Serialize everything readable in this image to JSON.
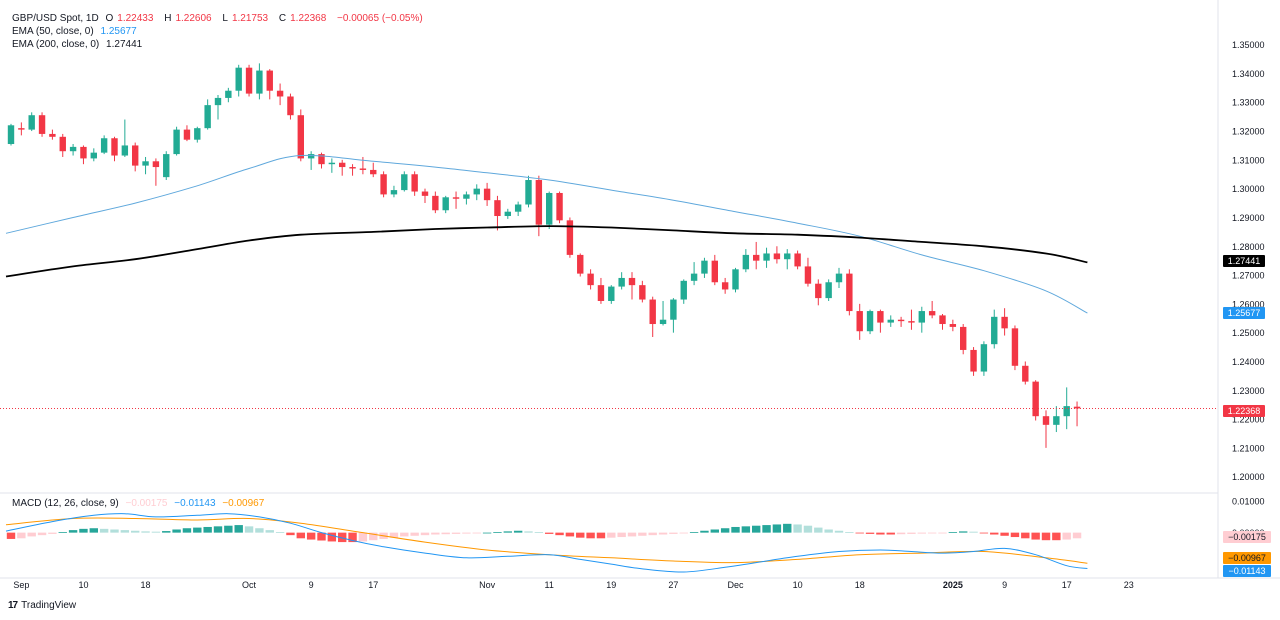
{
  "header": {
    "symbol": "GBP/USD Spot, 1D",
    "o_label": "O",
    "o": "1.22433",
    "h_label": "H",
    "h": "1.22606",
    "l_label": "L",
    "l": "1.21753",
    "c_label": "C",
    "c": "1.22368",
    "change": "−0.00065 (−0.05%)",
    "ema50_name": "EMA (50, close, 0)",
    "ema50_value": "1.25677",
    "ema200_name": "EMA (200, close, 0)",
    "ema200_value": "1.27441"
  },
  "macd_legend": {
    "name": "MACD (12, 26, close, 9)",
    "hist_value": "−0.00175",
    "macd_value": "−0.01143",
    "signal_value": "−0.00967"
  },
  "price_tags": {
    "ema200": "1.27441",
    "ema50": "1.25677",
    "last": "1.22368"
  },
  "macd_tags": {
    "hist": "−0.00175",
    "signal": "−0.00967",
    "macd": "−0.01143"
  },
  "branding": "TradingView",
  "colors": {
    "up": "#22ab94",
    "down": "#f23645",
    "ema50": "#5fa8dc",
    "ema200": "#000000",
    "macd": "#2196f3",
    "signal": "#ff9800",
    "hist_up_strong": "#26a69a",
    "hist_up_weak": "#b2dfdb",
    "hist_down_strong": "#ff5252",
    "hist_down_weak": "#ffcdd2"
  },
  "chart_data": {
    "type": "candlestick",
    "title": "GBP/USD Spot, 1D",
    "ylim": [
      1.1985,
      1.353
    ],
    "y_ticks": [
      "1.35000",
      "1.34000",
      "1.33000",
      "1.32000",
      "1.31000",
      "1.30000",
      "1.29000",
      "1.28000",
      "1.27000",
      "1.26000",
      "1.25000",
      "1.24000",
      "1.23000",
      "1.22000",
      "1.21000",
      "1.20000"
    ],
    "x_ticks": [
      {
        "label": "Sep",
        "i": 1
      },
      {
        "label": "10",
        "i": 7
      },
      {
        "label": "18",
        "i": 13
      },
      {
        "label": "Oct",
        "i": 23
      },
      {
        "label": "9",
        "i": 29
      },
      {
        "label": "17",
        "i": 35
      },
      {
        "label": "Nov",
        "i": 46
      },
      {
        "label": "11",
        "i": 52
      },
      {
        "label": "19",
        "i": 58
      },
      {
        "label": "27",
        "i": 64
      },
      {
        "label": "Dec",
        "i": 70
      },
      {
        "label": "10",
        "i": 76
      },
      {
        "label": "18",
        "i": 82
      },
      {
        "label": "2025",
        "i": 91,
        "bold": true
      },
      {
        "label": "9",
        "i": 96
      },
      {
        "label": "17",
        "i": 102
      },
      {
        "label": "23",
        "i": 108
      }
    ],
    "candles": [
      [
        1.3155,
        1.3225,
        1.315,
        1.322
      ],
      [
        1.321,
        1.323,
        1.3185,
        1.3205
      ],
      [
        1.3205,
        1.3265,
        1.32,
        1.3255
      ],
      [
        1.3255,
        1.3265,
        1.318,
        1.319
      ],
      [
        1.319,
        1.3205,
        1.317,
        1.318
      ],
      [
        1.318,
        1.319,
        1.311,
        1.313
      ],
      [
        1.313,
        1.3155,
        1.3115,
        1.3145
      ],
      [
        1.3145,
        1.315,
        1.3085,
        1.3105
      ],
      [
        1.3105,
        1.314,
        1.3095,
        1.3125
      ],
      [
        1.3125,
        1.3185,
        1.312,
        1.3175
      ],
      [
        1.3175,
        1.318,
        1.3095,
        1.3115
      ],
      [
        1.3115,
        1.324,
        1.311,
        1.315
      ],
      [
        1.315,
        1.316,
        1.306,
        1.308
      ],
      [
        1.308,
        1.311,
        1.305,
        1.3095
      ],
      [
        1.3095,
        1.3105,
        1.301,
        1.3075
      ],
      [
        1.304,
        1.313,
        1.303,
        1.312
      ],
      [
        1.312,
        1.3215,
        1.3115,
        1.3205
      ],
      [
        1.3205,
        1.322,
        1.3165,
        1.317
      ],
      [
        1.317,
        1.3215,
        1.316,
        1.321
      ],
      [
        1.321,
        1.331,
        1.3205,
        1.329
      ],
      [
        1.329,
        1.3325,
        1.324,
        1.3315
      ],
      [
        1.3315,
        1.335,
        1.33,
        1.334
      ],
      [
        1.334,
        1.343,
        1.332,
        1.342
      ],
      [
        1.342,
        1.343,
        1.332,
        1.333
      ],
      [
        1.333,
        1.3435,
        1.331,
        1.341
      ],
      [
        1.341,
        1.3415,
        1.331,
        1.334
      ],
      [
        1.334,
        1.3365,
        1.329,
        1.332
      ],
      [
        1.332,
        1.333,
        1.324,
        1.3255
      ],
      [
        1.3255,
        1.3275,
        1.3095,
        1.3105
      ],
      [
        1.3105,
        1.313,
        1.3065,
        1.312
      ],
      [
        1.312,
        1.3125,
        1.307,
        1.3085
      ],
      [
        1.3085,
        1.3105,
        1.3055,
        1.309
      ],
      [
        1.309,
        1.31,
        1.3045,
        1.3075
      ],
      [
        1.3075,
        1.3085,
        1.3045,
        1.307
      ],
      [
        1.307,
        1.311,
        1.305,
        1.3065
      ],
      [
        1.3065,
        1.309,
        1.304,
        1.305
      ],
      [
        1.305,
        1.306,
        1.297,
        1.298
      ],
      [
        1.298,
        1.301,
        1.297,
        1.2995
      ],
      [
        1.2995,
        1.306,
        1.299,
        1.305
      ],
      [
        1.305,
        1.306,
        1.2975,
        1.299
      ],
      [
        1.299,
        1.3,
        1.295,
        1.2975
      ],
      [
        1.2975,
        1.299,
        1.2915,
        1.2925
      ],
      [
        1.2925,
        1.2975,
        1.2915,
        1.297
      ],
      [
        1.297,
        1.299,
        1.293,
        1.2965
      ],
      [
        1.2965,
        1.299,
        1.2945,
        1.298
      ],
      [
        1.298,
        1.3015,
        1.296,
        1.3
      ],
      [
        1.3,
        1.302,
        1.294,
        1.296
      ],
      [
        1.296,
        1.2975,
        1.2855,
        1.2905
      ],
      [
        1.2905,
        1.293,
        1.2895,
        1.292
      ],
      [
        1.292,
        1.2955,
        1.2905,
        1.2945
      ],
      [
        1.2945,
        1.3045,
        1.2935,
        1.303
      ],
      [
        1.303,
        1.3045,
        1.2835,
        1.2875
      ],
      [
        1.2875,
        1.299,
        1.286,
        1.2985
      ],
      [
        1.2985,
        1.299,
        1.288,
        1.289
      ],
      [
        1.289,
        1.29,
        1.276,
        1.277
      ],
      [
        1.277,
        1.2775,
        1.2695,
        1.2705
      ],
      [
        1.2705,
        1.272,
        1.265,
        1.2665
      ],
      [
        1.2665,
        1.269,
        1.26,
        1.261
      ],
      [
        1.261,
        1.2665,
        1.26,
        1.266
      ],
      [
        1.266,
        1.271,
        1.265,
        1.269
      ],
      [
        1.269,
        1.271,
        1.2615,
        1.2665
      ],
      [
        1.2665,
        1.268,
        1.2605,
        1.2615
      ],
      [
        1.2615,
        1.2625,
        1.2485,
        1.253
      ],
      [
        1.253,
        1.261,
        1.2525,
        1.2545
      ],
      [
        1.2545,
        1.262,
        1.25,
        1.2615
      ],
      [
        1.2615,
        1.2685,
        1.26,
        1.268
      ],
      [
        1.268,
        1.2745,
        1.2665,
        1.2705
      ],
      [
        1.2705,
        1.276,
        1.269,
        1.275
      ],
      [
        1.275,
        1.277,
        1.2665,
        1.2675
      ],
      [
        1.2675,
        1.269,
        1.2635,
        1.265
      ],
      [
        1.265,
        1.2725,
        1.264,
        1.272
      ],
      [
        1.272,
        1.279,
        1.271,
        1.277
      ],
      [
        1.277,
        1.2815,
        1.272,
        1.275
      ],
      [
        1.275,
        1.2795,
        1.2725,
        1.2775
      ],
      [
        1.2775,
        1.28,
        1.274,
        1.2755
      ],
      [
        1.2755,
        1.279,
        1.272,
        1.2775
      ],
      [
        1.2775,
        1.2785,
        1.272,
        1.273
      ],
      [
        1.273,
        1.276,
        1.266,
        1.267
      ],
      [
        1.267,
        1.2685,
        1.2595,
        1.262
      ],
      [
        1.262,
        1.2685,
        1.261,
        1.2675
      ],
      [
        1.2675,
        1.2725,
        1.2655,
        1.2705
      ],
      [
        1.2705,
        1.272,
        1.256,
        1.2575
      ],
      [
        1.2575,
        1.26,
        1.2475,
        1.2505
      ],
      [
        1.2505,
        1.258,
        1.2495,
        1.2575
      ],
      [
        1.2575,
        1.258,
        1.25,
        1.2535
      ],
      [
        1.2535,
        1.256,
        1.252,
        1.2545
      ],
      [
        1.2545,
        1.2555,
        1.252,
        1.254
      ],
      [
        1.254,
        1.258,
        1.251,
        1.2535
      ],
      [
        1.2535,
        1.259,
        1.25,
        1.2575
      ],
      [
        1.2575,
        1.261,
        1.255,
        1.256
      ],
      [
        1.256,
        1.2565,
        1.251,
        1.253
      ],
      [
        1.253,
        1.2545,
        1.2505,
        1.252
      ],
      [
        1.252,
        1.253,
        1.2425,
        1.244
      ],
      [
        1.244,
        1.245,
        1.235,
        1.2365
      ],
      [
        1.2365,
        1.247,
        1.235,
        1.246
      ],
      [
        1.246,
        1.258,
        1.2445,
        1.2555
      ],
      [
        1.2555,
        1.2585,
        1.249,
        1.2515
      ],
      [
        1.2515,
        1.2525,
        1.237,
        1.2385
      ],
      [
        1.2385,
        1.24,
        1.232,
        1.233
      ],
      [
        1.233,
        1.2335,
        1.2195,
        1.221
      ],
      [
        1.221,
        1.223,
        1.21,
        1.218
      ],
      [
        1.218,
        1.2245,
        1.2155,
        1.221
      ],
      [
        1.221,
        1.231,
        1.2165,
        1.2245
      ],
      [
        1.2243,
        1.2261,
        1.2175,
        1.2237
      ]
    ],
    "ema50": [
      [
        0,
        1.2845
      ],
      [
        6,
        1.29
      ],
      [
        12,
        1.295
      ],
      [
        18,
        1.301
      ],
      [
        23,
        1.307
      ],
      [
        28,
        1.3115
      ],
      [
        35,
        1.3095
      ],
      [
        41,
        1.3075
      ],
      [
        46,
        1.3055
      ],
      [
        52,
        1.303
      ],
      [
        58,
        1.2995
      ],
      [
        64,
        1.296
      ],
      [
        70,
        1.292
      ],
      [
        76,
        1.288
      ],
      [
        82,
        1.2835
      ],
      [
        88,
        1.277
      ],
      [
        94,
        1.2715
      ],
      [
        100,
        1.2645
      ],
      [
        104,
        1.2568
      ]
    ],
    "ema200": [
      [
        0,
        1.2695
      ],
      [
        6,
        1.273
      ],
      [
        12,
        1.2755
      ],
      [
        18,
        1.279
      ],
      [
        23,
        1.282
      ],
      [
        28,
        1.284
      ],
      [
        35,
        1.285
      ],
      [
        41,
        1.286
      ],
      [
        46,
        1.2865
      ],
      [
        52,
        1.287
      ],
      [
        58,
        1.2865
      ],
      [
        64,
        1.2855
      ],
      [
        70,
        1.2845
      ],
      [
        76,
        1.284
      ],
      [
        82,
        1.283
      ],
      [
        88,
        1.2815
      ],
      [
        94,
        1.28
      ],
      [
        100,
        1.2775
      ],
      [
        104,
        1.2744
      ]
    ],
    "last_price": 1.22368,
    "macd": {
      "ylim": [
        -0.0125,
        0.011
      ],
      "y_ticks": [
        "0.01000",
        "0.00000"
      ],
      "macd_line": [
        [
          0,
          0.0005
        ],
        [
          4,
          0.0035
        ],
        [
          8,
          0.0055
        ],
        [
          11,
          0.006
        ],
        [
          14,
          0.005
        ],
        [
          18,
          0.0055
        ],
        [
          21,
          0.006
        ],
        [
          24,
          0.005
        ],
        [
          27,
          0.003
        ],
        [
          30,
          0.0
        ],
        [
          33,
          -0.0025
        ],
        [
          36,
          -0.0045
        ],
        [
          40,
          -0.0065
        ],
        [
          44,
          -0.008
        ],
        [
          48,
          -0.0075
        ],
        [
          52,
          -0.007
        ],
        [
          55,
          -0.0085
        ],
        [
          58,
          -0.01
        ],
        [
          61,
          -0.0115
        ],
        [
          65,
          -0.0125
        ],
        [
          69,
          -0.011
        ],
        [
          72,
          -0.0095
        ],
        [
          76,
          -0.0075
        ],
        [
          80,
          -0.006
        ],
        [
          84,
          -0.0055
        ],
        [
          87,
          -0.006
        ],
        [
          90,
          -0.0065
        ],
        [
          93,
          -0.006
        ],
        [
          96,
          -0.005
        ],
        [
          99,
          -0.007
        ],
        [
          102,
          -0.0105
        ],
        [
          104,
          -0.0114
        ]
      ],
      "signal_line": [
        [
          0,
          0.0025
        ],
        [
          6,
          0.0045
        ],
        [
          12,
          0.0045
        ],
        [
          18,
          0.004
        ],
        [
          23,
          0.0045
        ],
        [
          28,
          0.003
        ],
        [
          34,
          0.0
        ],
        [
          40,
          -0.003
        ],
        [
          46,
          -0.0055
        ],
        [
          52,
          -0.007
        ],
        [
          58,
          -0.008
        ],
        [
          64,
          -0.009
        ],
        [
          70,
          -0.0095
        ],
        [
          76,
          -0.0085
        ],
        [
          82,
          -0.007
        ],
        [
          88,
          -0.0065
        ],
        [
          94,
          -0.006
        ],
        [
          100,
          -0.008
        ],
        [
          104,
          -0.0097
        ]
      ],
      "histogram": [
        -0.002,
        -0.0018,
        -0.0012,
        -0.0008,
        -0.0004,
        0.0002,
        0.0008,
        0.0012,
        0.0014,
        0.0012,
        0.001,
        0.0008,
        0.0006,
        0.0004,
        0.0003,
        0.0005,
        0.001,
        0.0014,
        0.0016,
        0.0018,
        0.002,
        0.0022,
        0.0024,
        0.002,
        0.0014,
        0.0008,
        0.0002,
        -0.0008,
        -0.0018,
        -0.0022,
        -0.0025,
        -0.0028,
        -0.003,
        -0.003,
        -0.0028,
        -0.0024,
        -0.002,
        -0.0016,
        -0.0012,
        -0.001,
        -0.0008,
        -0.0006,
        -0.0005,
        -0.0004,
        -0.0003,
        -0.0002,
        0.0,
        0.0002,
        0.0004,
        0.0006,
        0.0004,
        0.0002,
        -0.0004,
        -0.0008,
        -0.0012,
        -0.0016,
        -0.0018,
        -0.0018,
        -0.0016,
        -0.0014,
        -0.0012,
        -0.001,
        -0.0008,
        -0.0006,
        -0.0004,
        -0.0002,
        0.0002,
        0.0006,
        0.001,
        0.0014,
        0.0018,
        0.002,
        0.0022,
        0.0024,
        0.0026,
        0.0028,
        0.0026,
        0.0022,
        0.0016,
        0.001,
        0.0006,
        0.0002,
        -0.0002,
        -0.0004,
        -0.0006,
        -0.0006,
        -0.0005,
        -0.0004,
        -0.0003,
        -0.0002,
        -0.0001,
        0.0002,
        0.0004,
        0.0003,
        -0.0002,
        -0.0006,
        -0.001,
        -0.0014,
        -0.0018,
        -0.0022,
        -0.0024,
        -0.0024,
        -0.0022,
        -0.0018
      ]
    }
  }
}
